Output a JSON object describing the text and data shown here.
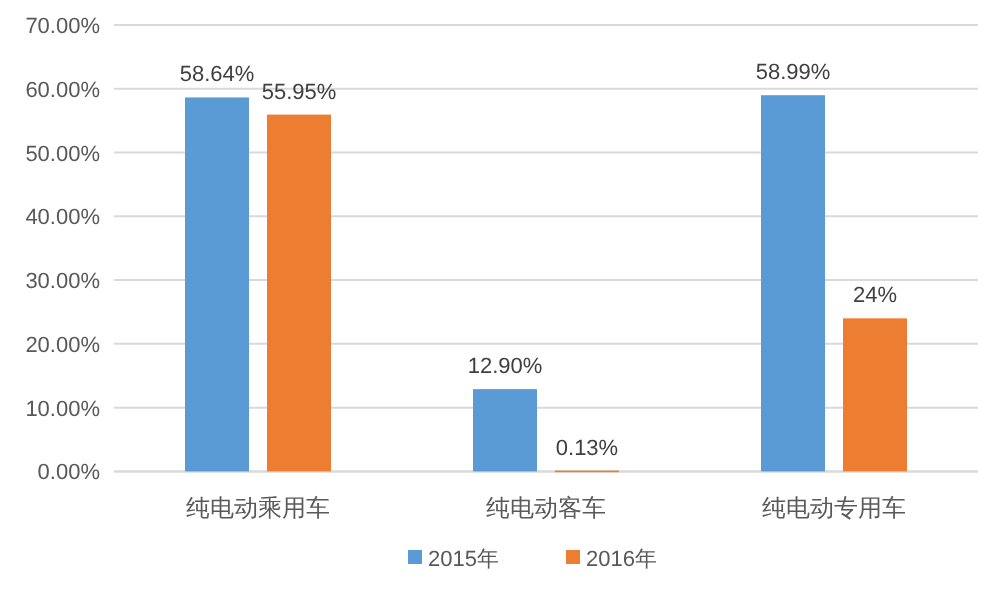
{
  "chart_data": {
    "type": "bar",
    "categories": [
      "纯电动乘用车",
      "纯电动客车",
      "纯电动专用车"
    ],
    "series": [
      {
        "name": "2015年",
        "color": "#5b9bd5",
        "values": [
          58.64,
          12.9,
          58.99
        ],
        "value_labels": [
          "58.64%",
          "12.90%",
          "58.99%"
        ]
      },
      {
        "name": "2016年",
        "color": "#ed7d31",
        "values": [
          55.95,
          0.13,
          24
        ],
        "value_labels": [
          "55.95%",
          "0.13%",
          "24%"
        ]
      }
    ],
    "ylim": [
      0,
      70
    ],
    "yticks": [
      {
        "value": 0,
        "label": "0.00%"
      },
      {
        "value": 10,
        "label": "10.00%"
      },
      {
        "value": 20,
        "label": "20.00%"
      },
      {
        "value": 30,
        "label": "30.00%"
      },
      {
        "value": 40,
        "label": "40.00%"
      },
      {
        "value": 50,
        "label": "50.00%"
      },
      {
        "value": 60,
        "label": "60.00%"
      },
      {
        "value": 70,
        "label": "70.00%"
      }
    ],
    "grid": "y",
    "legend": "bottom"
  }
}
